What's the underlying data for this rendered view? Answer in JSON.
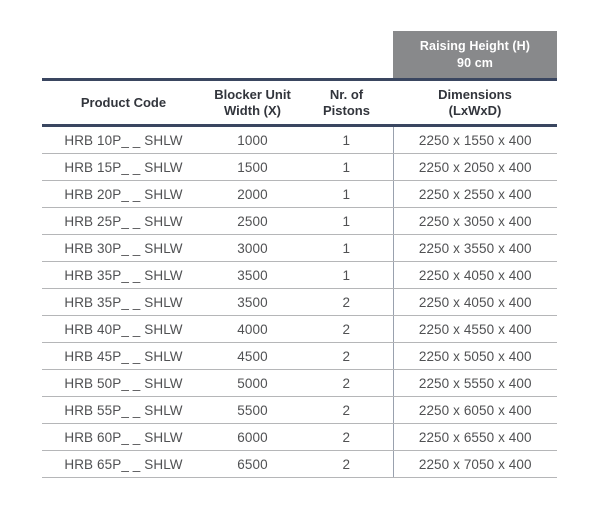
{
  "banner": {
    "line1": "Raising Height (H)",
    "line2": "90 cm"
  },
  "table": {
    "columns": [
      {
        "line1": "Product Code",
        "line2": ""
      },
      {
        "line1": "Blocker Unit",
        "line2": "Width (X)"
      },
      {
        "line1": "Nr. of",
        "line2": "Pistons"
      },
      {
        "line1": "Dimensions",
        "line2": "(LxWxD)"
      }
    ],
    "rows": [
      [
        "HRB 10P_ _ SHLW",
        "1000",
        "1",
        "2250 x 1550 x 400"
      ],
      [
        "HRB 15P_ _ SHLW",
        "1500",
        "1",
        "2250 x 2050 x 400"
      ],
      [
        "HRB 20P_ _ SHLW",
        "2000",
        "1",
        "2250 x 2550 x 400"
      ],
      [
        "HRB 25P_ _ SHLW",
        "2500",
        "1",
        "2250 x 3050 x 400"
      ],
      [
        "HRB 30P_ _ SHLW",
        "3000",
        "1",
        "2250 x 3550 x 400"
      ],
      [
        "HRB 35P_ _ SHLW",
        "3500",
        "1",
        "2250 x 4050 x 400"
      ],
      [
        "HRB 35P_ _ SHLW",
        "3500",
        "2",
        "2250 x 4050 x 400"
      ],
      [
        "HRB 40P_ _ SHLW",
        "4000",
        "2",
        "2250 x 4550 x 400"
      ],
      [
        "HRB 45P_ _ SHLW",
        "4500",
        "2",
        "2250 x 5050 x 400"
      ],
      [
        "HRB 50P_ _ SHLW",
        "5000",
        "2",
        "2250 x 5550 x 400"
      ],
      [
        "HRB 55P_ _ SHLW",
        "5500",
        "2",
        "2250 x 6050 x 400"
      ],
      [
        "HRB 60P_ _ SHLW",
        "6000",
        "2",
        "2250 x 6550 x 400"
      ],
      [
        "HRB 65P_ _ SHLW",
        "6500",
        "2",
        "2250 x 7050 x 400"
      ]
    ]
  },
  "colors": {
    "banner_bg": "#88898b",
    "banner_text": "#ffffff",
    "header_rule": "#3a4660",
    "row_rule": "#b5b6b8",
    "column_divider": "#99a1ae",
    "header_text": "#32353c",
    "body_text": "#505153"
  }
}
